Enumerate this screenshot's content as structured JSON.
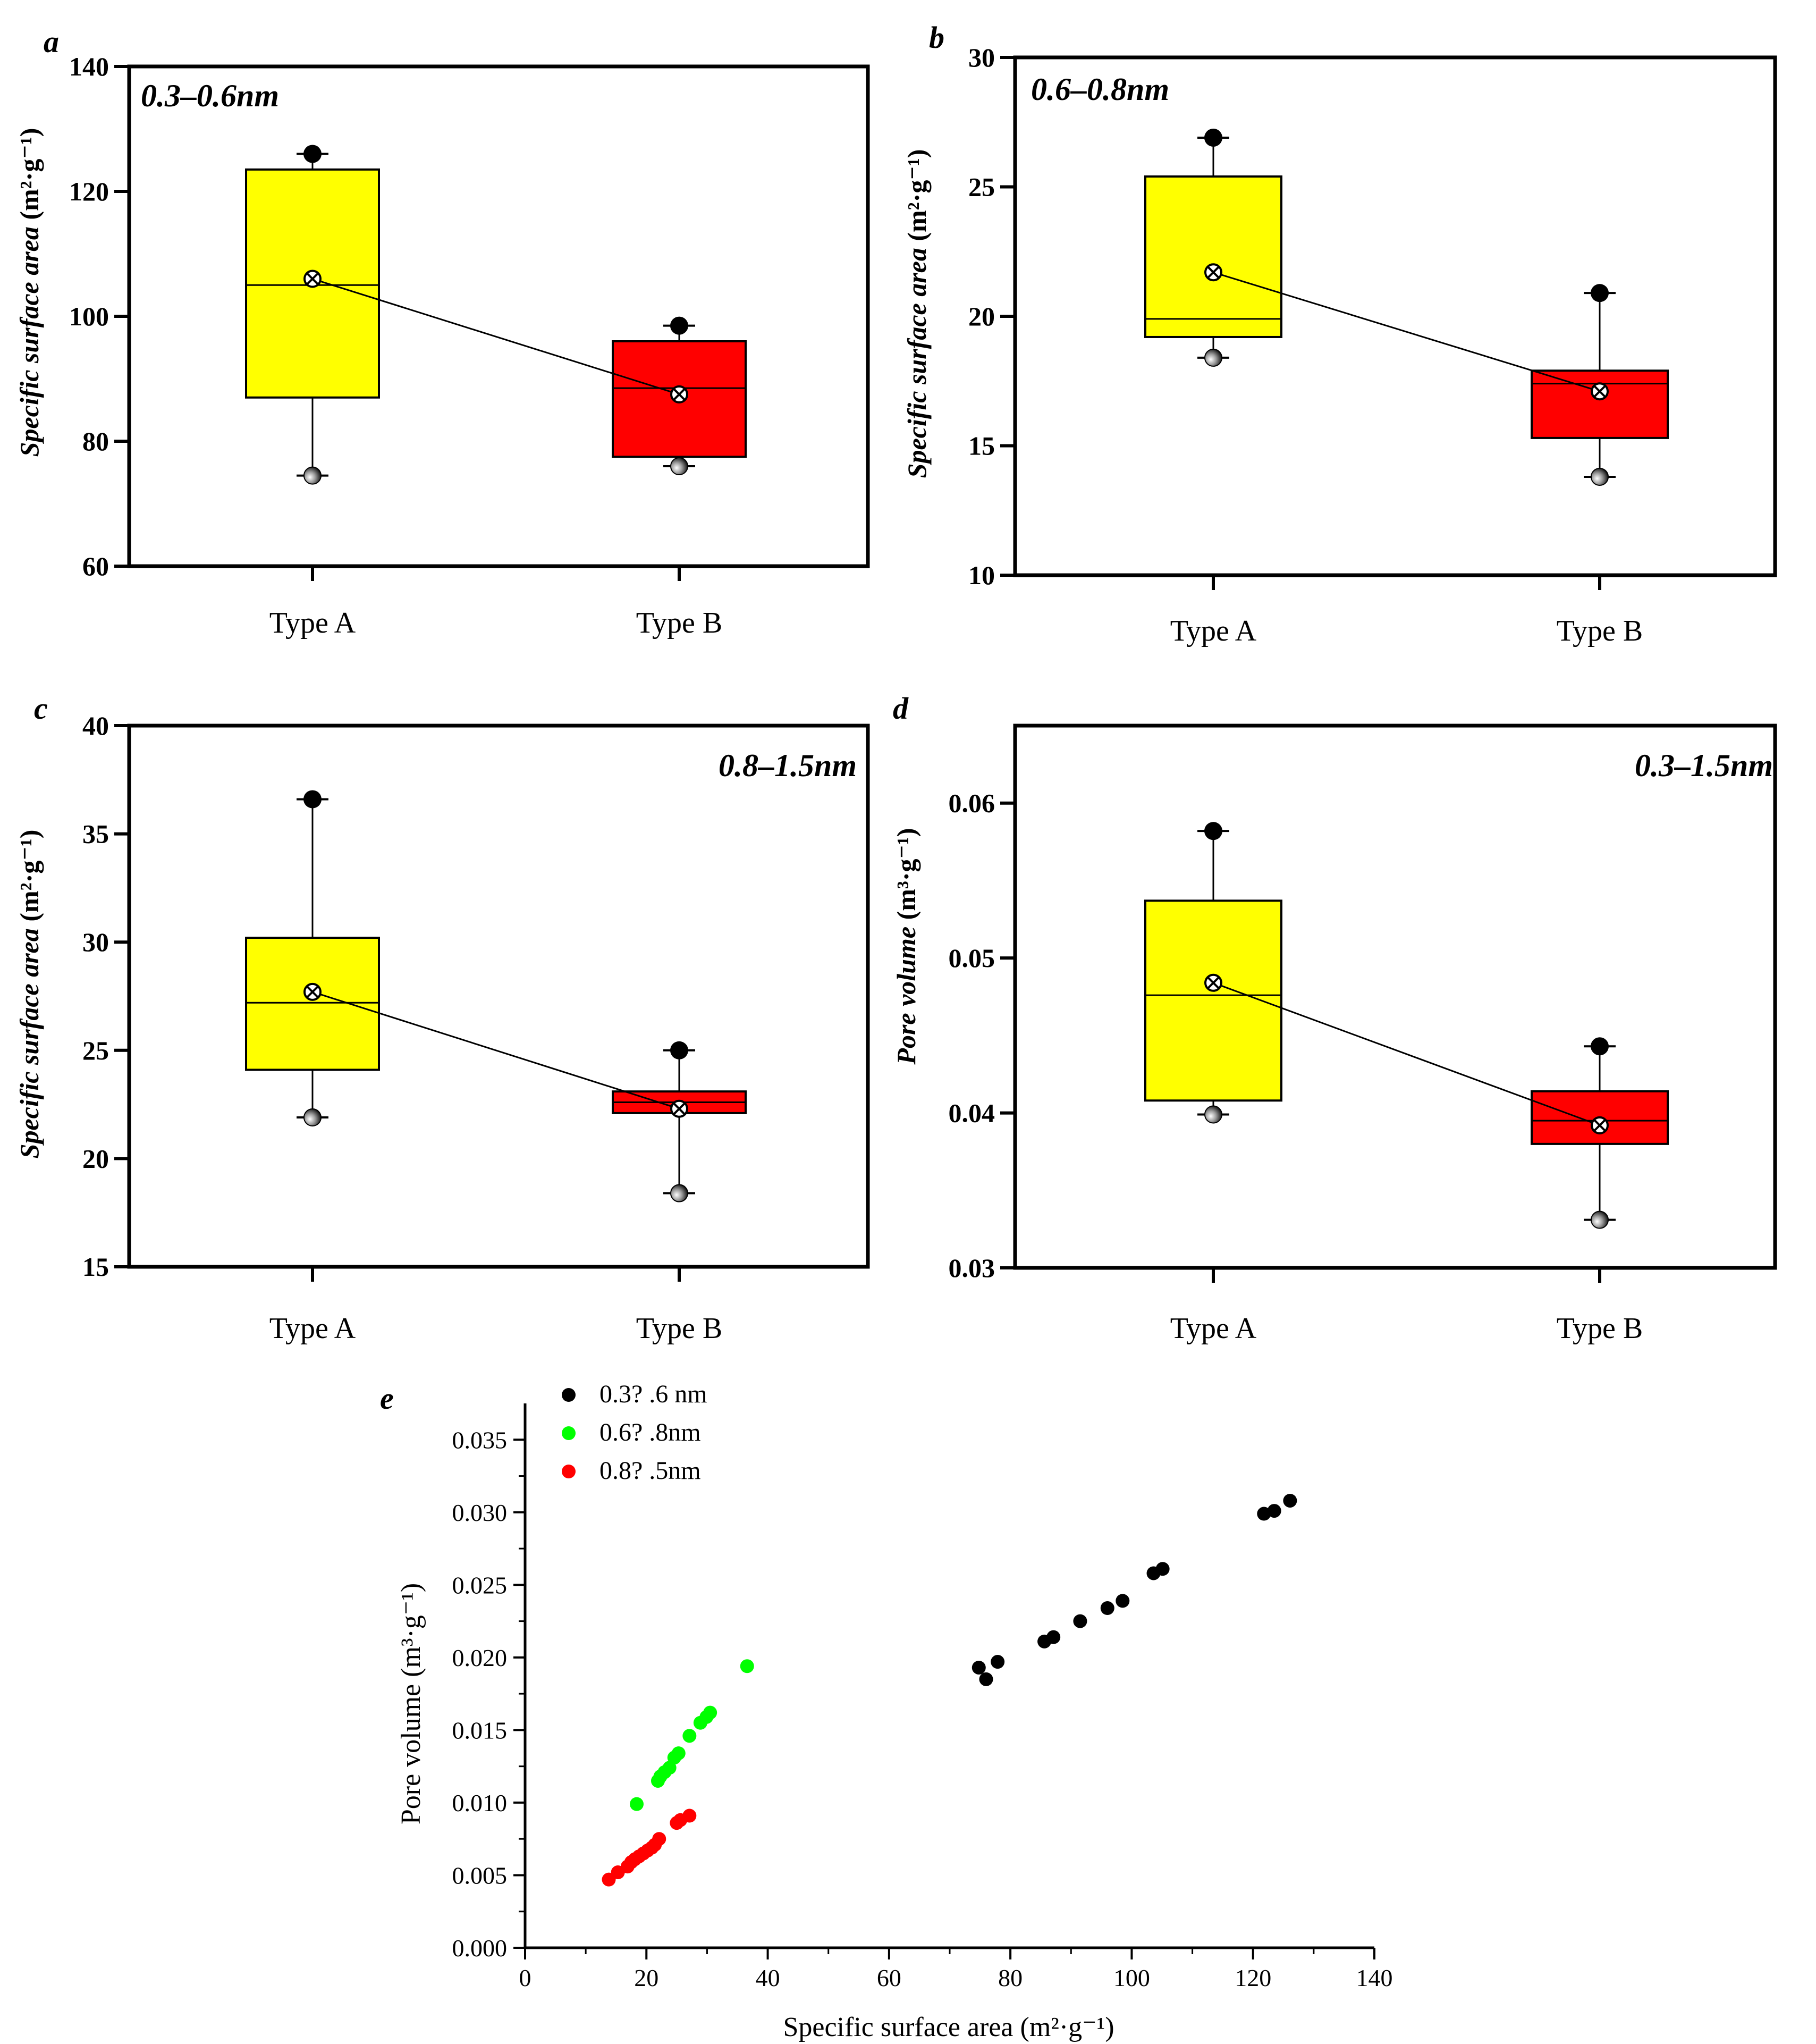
{
  "chart_data": [
    {
      "panel": "a",
      "type": "box",
      "range_label": "0.3–0.6nm",
      "ylabel": "Specific surface area (m²·g⁻¹)",
      "ylabel_italic": "Specific surface area",
      "ylabel_unit": "(m²·g⁻¹)",
      "ylim": [
        60,
        140
      ],
      "yticks": [
        60,
        80,
        100,
        120,
        140
      ],
      "categories": [
        "Type A",
        "Type B"
      ],
      "boxes": [
        {
          "category": "Type A",
          "q1": 87,
          "median": 105,
          "q3": 123.5,
          "whisker_low": 74.5,
          "whisker_high": 126,
          "mean": 106,
          "max_point": 126,
          "min_point": 74.5,
          "color": "#ffff00"
        },
        {
          "category": "Type B",
          "q1": 77.5,
          "median": 88.5,
          "q3": 96,
          "whisker_low": 76,
          "whisker_high": 98.5,
          "mean": 87.5,
          "max_point": 98.5,
          "min_point": 76,
          "color": "#ff0000"
        }
      ]
    },
    {
      "panel": "b",
      "type": "box",
      "range_label": "0.6–0.8nm",
      "ylabel": "Specific surface area (m²·g⁻¹)",
      "ylabel_italic": "Specific surface area",
      "ylabel_unit": "(m²·g⁻¹)",
      "ylim": [
        10,
        30
      ],
      "yticks": [
        10,
        15,
        20,
        25,
        30
      ],
      "categories": [
        "Type A",
        "Type B"
      ],
      "boxes": [
        {
          "category": "Type A",
          "q1": 19.2,
          "median": 19.9,
          "q3": 25.4,
          "whisker_low": 18.4,
          "whisker_high": 26.9,
          "mean": 21.7,
          "max_point": 26.9,
          "min_point": 18.4,
          "color": "#ffff00"
        },
        {
          "category": "Type B",
          "q1": 15.3,
          "median": 17.4,
          "q3": 17.9,
          "whisker_low": 13.8,
          "whisker_high": 20.9,
          "mean": 17.1,
          "max_point": 20.9,
          "min_point": 13.8,
          "color": "#ff0000"
        }
      ]
    },
    {
      "panel": "c",
      "type": "box",
      "range_label": "0.8–1.5nm",
      "ylabel": "Specific surface area (m²·g⁻¹)",
      "ylabel_italic": "Specific surface area",
      "ylabel_unit": "(m²·g⁻¹)",
      "ylim": [
        15,
        40
      ],
      "yticks": [
        15,
        20,
        25,
        30,
        35,
        40
      ],
      "categories": [
        "Type A",
        "Type B"
      ],
      "boxes": [
        {
          "category": "Type A",
          "q1": 24.1,
          "median": 27.2,
          "q3": 30.2,
          "whisker_low": 21.9,
          "whisker_high": 36.6,
          "mean": 27.7,
          "max_point": 36.6,
          "min_point": 21.9,
          "color": "#ffff00"
        },
        {
          "category": "Type B",
          "q1": 22.1,
          "median": 22.6,
          "q3": 23.1,
          "whisker_low": 18.4,
          "whisker_high": 25.0,
          "mean": 22.3,
          "max_point": 25.0,
          "min_point": 18.4,
          "color": "#ff0000"
        }
      ]
    },
    {
      "panel": "d",
      "type": "box",
      "range_label": "0.3–1.5nm",
      "ylabel": "Pore volume (m³·g⁻¹)",
      "ylabel_italic": "Pore volume",
      "ylabel_unit": "(m³·g⁻¹)",
      "ylim": [
        0.03,
        0.065
      ],
      "yticks": [
        0.03,
        0.04,
        0.05,
        0.06
      ],
      "ytick_labels": [
        "0.03",
        "0.04",
        "0.05",
        "0.06"
      ],
      "categories": [
        "Type A",
        "Type B"
      ],
      "boxes": [
        {
          "category": "Type A",
          "q1": 0.0408,
          "median": 0.0476,
          "q3": 0.0537,
          "whisker_low": 0.0399,
          "whisker_high": 0.0582,
          "mean": 0.0484,
          "max_point": 0.0582,
          "min_point": 0.0399,
          "color": "#ffff00"
        },
        {
          "category": "Type B",
          "q1": 0.038,
          "median": 0.0395,
          "q3": 0.0414,
          "whisker_low": 0.0331,
          "whisker_high": 0.0443,
          "mean": 0.0392,
          "max_point": 0.0443,
          "min_point": 0.0331,
          "color": "#ff0000"
        }
      ]
    },
    {
      "panel": "e",
      "type": "scatter",
      "xlabel": "Specific surface area (m²·g⁻¹)",
      "ylabel": "Pore volume (m³·g⁻¹)",
      "xlim": [
        0,
        140
      ],
      "ylim": [
        0,
        0.0375
      ],
      "xticks": [
        0,
        20,
        40,
        60,
        80,
        100,
        120,
        140
      ],
      "yticks": [
        0,
        0.005,
        0.01,
        0.015,
        0.02,
        0.025,
        0.03,
        0.035
      ],
      "ytick_labels": [
        "0.000",
        "0.005",
        "0.010",
        "0.015",
        "0.020",
        "0.025",
        "0.030",
        "0.035"
      ],
      "legend_position": "top-left",
      "series": [
        {
          "name": "0.3?   .6 nm",
          "color": "#000000",
          "x": [
            74.8,
            76.0,
            77.9,
            85.6,
            87.1,
            91.5,
            96.0,
            98.5,
            103.6,
            105.1,
            121.8,
            123.5,
            126.1
          ],
          "y": [
            0.0193,
            0.0185,
            0.0197,
            0.0211,
            0.0214,
            0.0225,
            0.0234,
            0.0239,
            0.0258,
            0.0261,
            0.0299,
            0.0301,
            0.0308
          ]
        },
        {
          "name": "0.6?   .8nm",
          "color": "#00ff00",
          "x": [
            18.4,
            21.9,
            22.3,
            23.0,
            23.8,
            24.6,
            25.3,
            27.1,
            28.9,
            29.9,
            30.5,
            36.6
          ],
          "y": [
            0.0099,
            0.0115,
            0.0118,
            0.0121,
            0.0124,
            0.0131,
            0.0134,
            0.0146,
            0.0155,
            0.0159,
            0.0162,
            0.0194
          ]
        },
        {
          "name": "0.8?   .5nm",
          "color": "#ff0000",
          "x": [
            13.8,
            15.3,
            16.9,
            17.5,
            18.1,
            18.8,
            19.5,
            20.2,
            20.9,
            21.4,
            22.1,
            25.0,
            25.6,
            27.1
          ],
          "y": [
            0.0047,
            0.0052,
            0.0056,
            0.0059,
            0.0061,
            0.0063,
            0.0065,
            0.0067,
            0.0069,
            0.0071,
            0.0075,
            0.0086,
            0.0088,
            0.0091
          ]
        }
      ]
    }
  ]
}
